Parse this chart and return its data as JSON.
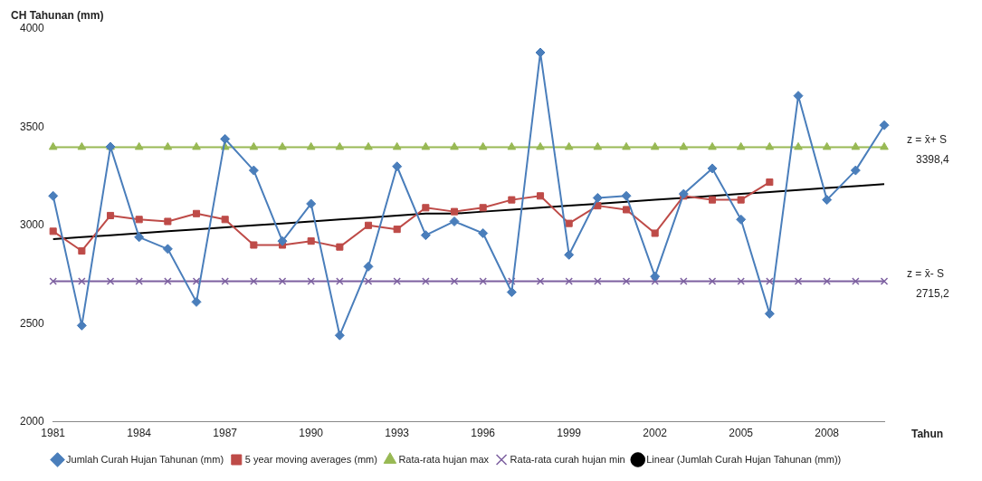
{
  "chart_data": {
    "type": "line",
    "ylabel": "CH Tahunan (mm)",
    "xlabel": "Tahun",
    "categories": [
      "1981",
      null,
      null,
      "1984",
      null,
      null,
      "1987",
      null,
      null,
      "1990",
      null,
      null,
      "1993",
      null,
      null,
      "1996",
      null,
      null,
      "1999",
      null,
      null,
      "2002",
      null,
      null,
      "2005",
      null,
      null,
      "2008",
      null,
      null
    ],
    "series": [
      {
        "name": "Jumlah Curah Hujan Tahunan (mm)",
        "color": "#4a7ebb",
        "marker": "diamond",
        "values": [
          3150,
          2490,
          3400,
          2940,
          2880,
          2610,
          3440,
          3280,
          2920,
          3110,
          2440,
          2790,
          3300,
          2950,
          3020,
          2960,
          2660,
          3880,
          2850,
          3140,
          3150,
          2740,
          3160,
          3290,
          3030,
          2550,
          3660,
          3130,
          3280,
          3510
        ]
      },
      {
        "name": "5 year moving averages (mm)",
        "color": "#be4b48",
        "marker": "square",
        "values": [
          2970,
          2870,
          3050,
          3030,
          3020,
          3060,
          3030,
          2900,
          2900,
          2920,
          2890,
          3000,
          2980,
          3090,
          3070,
          3090,
          3130,
          3150,
          3010,
          3100,
          3080,
          2960,
          3150,
          3130,
          3130,
          3220,
          null,
          null,
          null,
          null
        ]
      },
      {
        "name": "Rata-rata hujan max",
        "color": "#98b954",
        "marker": "triangle",
        "values": [
          3398.4,
          3398.4,
          3398.4,
          3398.4,
          3398.4,
          3398.4,
          3398.4,
          3398.4,
          3398.4,
          3398.4,
          3398.4,
          3398.4,
          3398.4,
          3398.4,
          3398.4,
          3398.4,
          3398.4,
          3398.4,
          3398.4,
          3398.4,
          3398.4,
          3398.4,
          3398.4,
          3398.4,
          3398.4,
          3398.4,
          3398.4,
          3398.4,
          3398.4,
          3398.4
        ]
      },
      {
        "name": "Rata-rata curah hujan min",
        "color": "#7d60a0",
        "marker": "cross",
        "values": [
          2715.2,
          2715.2,
          2715.2,
          2715.2,
          2715.2,
          2715.2,
          2715.2,
          2715.2,
          2715.2,
          2715.2,
          2715.2,
          2715.2,
          2715.2,
          2715.2,
          2715.2,
          2715.2,
          2715.2,
          2715.2,
          2715.2,
          2715.2,
          2715.2,
          2715.2,
          2715.2,
          2715.2,
          2715.2,
          2715.2,
          2715.2,
          2715.2,
          2715.2,
          2715.2
        ]
      },
      {
        "name": "Linear (Jumlah Curah Hujan Tahunan (mm))",
        "color": "#000000",
        "marker": "none",
        "values": [
          2930,
          2940,
          2950,
          2960,
          2970,
          2980,
          2990,
          3000,
          3010,
          3020,
          3030,
          3040,
          3050,
          3060,
          3060,
          3070,
          3080,
          3090,
          3100,
          3110,
          3120,
          3130,
          3140,
          3150,
          3160,
          3170,
          3180,
          3190,
          3200,
          3210
        ]
      }
    ],
    "ylim": [
      2000,
      4000
    ],
    "yticks": [
      2000,
      2500,
      3000,
      3500,
      4000
    ],
    "grid": false,
    "legend": "bottom",
    "annotations": [
      "z = x̄+ S",
      "3398,4",
      "z = x̄- S",
      "2715,2"
    ]
  }
}
